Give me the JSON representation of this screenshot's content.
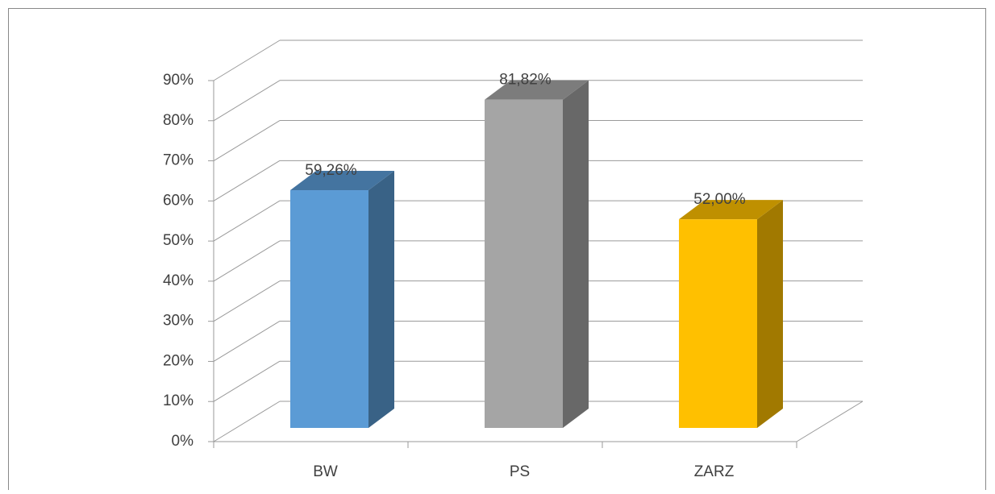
{
  "chart_data": {
    "type": "bar3d",
    "categories": [
      "BW",
      "PS",
      "ZARZ"
    ],
    "values": [
      59.26,
      81.82,
      52.0
    ],
    "value_labels": [
      "59,26%",
      "81,82%",
      "52,00%"
    ],
    "colors": [
      "#5b9bd5",
      "#a5a5a5",
      "#ffc000"
    ],
    "ylim": [
      0,
      90
    ],
    "yticks": [
      {
        "value": 0,
        "label": "0%"
      },
      {
        "value": 10,
        "label": "10%"
      },
      {
        "value": 20,
        "label": "20%"
      },
      {
        "value": 30,
        "label": "30%"
      },
      {
        "value": 40,
        "label": "40%"
      },
      {
        "value": 50,
        "label": "50%"
      },
      {
        "value": 60,
        "label": "60%"
      },
      {
        "value": 70,
        "label": "70%"
      },
      {
        "value": 80,
        "label": "80%"
      },
      {
        "value": 90,
        "label": "90%"
      }
    ],
    "grid": true
  }
}
